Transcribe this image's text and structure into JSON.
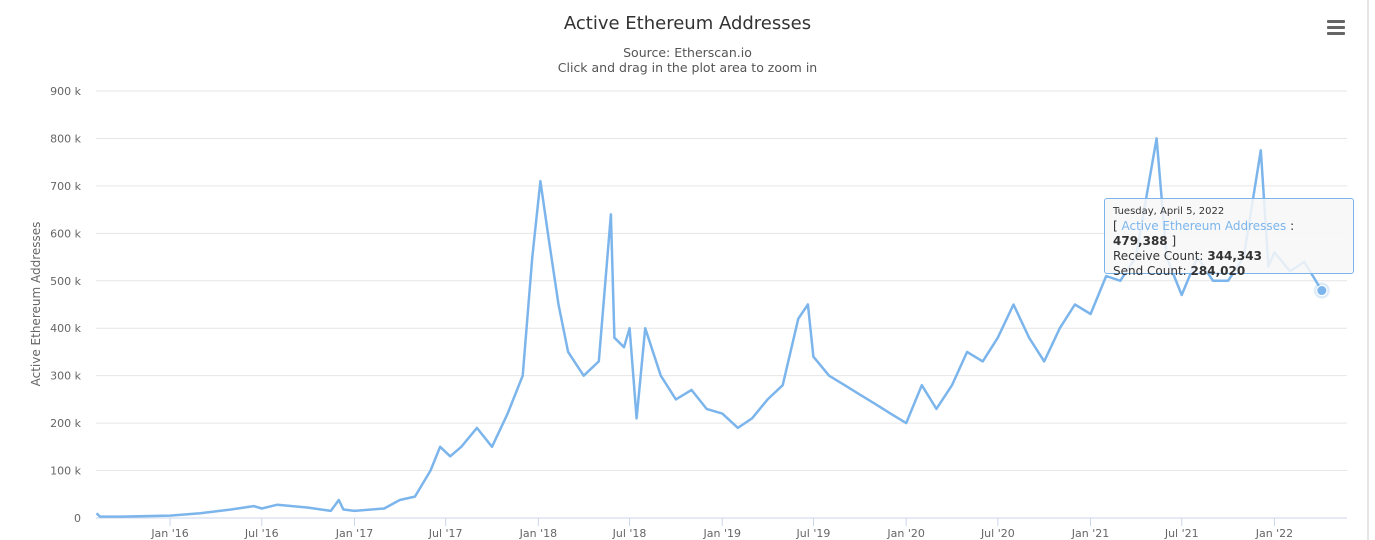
{
  "chart_data": {
    "type": "line",
    "title": "Active Ethereum Addresses",
    "subtitle": "Source: Etherscan.io",
    "subtitle2": "Click and drag in the plot area to zoom in",
    "ylabel": "Active Ethereum Addresses",
    "xlabel": "",
    "ylim": [
      0,
      900000
    ],
    "xlim": [
      "2015-08-07",
      "2022-05-25"
    ],
    "y_ticks": [
      "0",
      "100 k",
      "200 k",
      "300 k",
      "400 k",
      "500 k",
      "600 k",
      "700 k",
      "800 k",
      "900 k"
    ],
    "x_ticks": [
      "Jan '16",
      "Jul '16",
      "Jan '17",
      "Jul '17",
      "Jan '18",
      "Jul '18",
      "Jan '19",
      "Jul '19",
      "Jan '20",
      "Jul '20",
      "Jan '21",
      "Jul '21",
      "Jan '22"
    ],
    "grid": true,
    "legend": "none",
    "series": [
      {
        "color": "#7cb5ec",
        "points": [
          [
            "2015-08-08",
            10000
          ],
          [
            "2015-08-15",
            3000
          ],
          [
            "2015-10-01",
            3000
          ],
          [
            "2016-01-01",
            5000
          ],
          [
            "2016-03-01",
            10000
          ],
          [
            "2016-05-01",
            18000
          ],
          [
            "2016-06-15",
            25000
          ],
          [
            "2016-07-01",
            20000
          ],
          [
            "2016-08-01",
            28000
          ],
          [
            "2016-10-01",
            22000
          ],
          [
            "2016-11-15",
            15000
          ],
          [
            "2016-12-01",
            38000
          ],
          [
            "2016-12-10",
            18000
          ],
          [
            "2017-01-01",
            15000
          ],
          [
            "2017-03-01",
            20000
          ],
          [
            "2017-04-01",
            38000
          ],
          [
            "2017-05-01",
            45000
          ],
          [
            "2017-06-01",
            100000
          ],
          [
            "2017-06-20",
            150000
          ],
          [
            "2017-07-10",
            130000
          ],
          [
            "2017-08-01",
            150000
          ],
          [
            "2017-09-01",
            190000
          ],
          [
            "2017-10-01",
            150000
          ],
          [
            "2017-11-01",
            220000
          ],
          [
            "2017-12-01",
            300000
          ],
          [
            "2017-12-20",
            550000
          ],
          [
            "2018-01-05",
            710000
          ],
          [
            "2018-01-20",
            600000
          ],
          [
            "2018-02-10",
            450000
          ],
          [
            "2018-03-01",
            350000
          ],
          [
            "2018-04-01",
            300000
          ],
          [
            "2018-05-01",
            330000
          ],
          [
            "2018-05-25",
            640000
          ],
          [
            "2018-06-01",
            380000
          ],
          [
            "2018-06-20",
            360000
          ],
          [
            "2018-07-01",
            400000
          ],
          [
            "2018-07-15",
            210000
          ],
          [
            "2018-08-01",
            400000
          ],
          [
            "2018-09-01",
            300000
          ],
          [
            "2018-10-01",
            250000
          ],
          [
            "2018-11-01",
            270000
          ],
          [
            "2018-12-01",
            230000
          ],
          [
            "2019-01-01",
            220000
          ],
          [
            "2019-02-01",
            190000
          ],
          [
            "2019-03-01",
            210000
          ],
          [
            "2019-04-01",
            250000
          ],
          [
            "2019-05-01",
            280000
          ],
          [
            "2019-06-01",
            420000
          ],
          [
            "2019-06-20",
            450000
          ],
          [
            "2019-07-01",
            340000
          ],
          [
            "2019-08-01",
            300000
          ],
          [
            "2019-09-01",
            280000
          ],
          [
            "2019-10-01",
            260000
          ],
          [
            "2019-11-01",
            240000
          ],
          [
            "2019-12-01",
            220000
          ],
          [
            "2020-01-01",
            200000
          ],
          [
            "2020-02-01",
            280000
          ],
          [
            "2020-03-01",
            230000
          ],
          [
            "2020-04-01",
            280000
          ],
          [
            "2020-05-01",
            350000
          ],
          [
            "2020-06-01",
            330000
          ],
          [
            "2020-07-01",
            380000
          ],
          [
            "2020-08-01",
            450000
          ],
          [
            "2020-09-01",
            380000
          ],
          [
            "2020-10-01",
            330000
          ],
          [
            "2020-11-01",
            400000
          ],
          [
            "2020-12-01",
            450000
          ],
          [
            "2021-01-01",
            430000
          ],
          [
            "2021-02-01",
            510000
          ],
          [
            "2021-03-01",
            500000
          ],
          [
            "2021-04-01",
            550000
          ],
          [
            "2021-05-12",
            800000
          ],
          [
            "2021-06-01",
            550000
          ],
          [
            "2021-07-01",
            470000
          ],
          [
            "2021-08-01",
            550000
          ],
          [
            "2021-09-01",
            500000
          ],
          [
            "2021-10-01",
            500000
          ],
          [
            "2021-11-01",
            550000
          ],
          [
            "2021-12-05",
            775000
          ],
          [
            "2021-12-20",
            530000
          ],
          [
            "2022-01-01",
            560000
          ],
          [
            "2022-02-01",
            520000
          ],
          [
            "2022-03-01",
            540000
          ],
          [
            "2022-04-05",
            479388
          ]
        ]
      }
    ],
    "tooltip": {
      "date": "Tuesday, April 5, 2022",
      "series_name": "Active Ethereum Addresses",
      "value": "479,388",
      "receive_label": "Receive Count:",
      "receive_value": "344,343",
      "send_label": "Send Count:",
      "send_value": "284,020",
      "x": "2022-04-05",
      "y": 479388
    }
  }
}
